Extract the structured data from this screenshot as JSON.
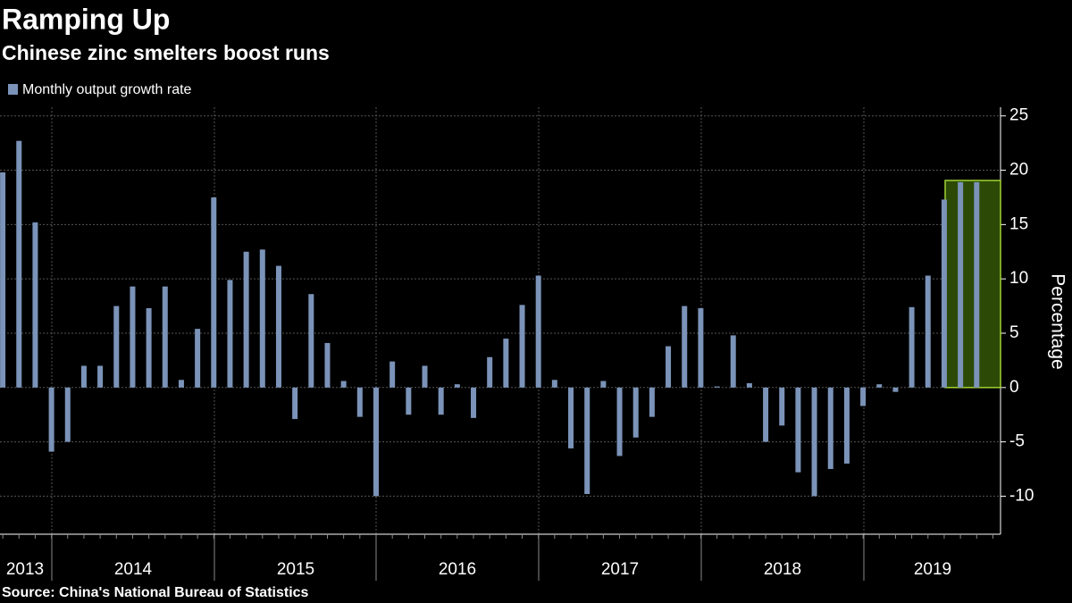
{
  "chart_data": {
    "type": "bar",
    "title": "Ramping Up",
    "subtitle": "Chinese zinc smelters boost runs",
    "source": "Source: China's National Bureau of Statistics",
    "y_label": "Percentage",
    "series": [
      {
        "name": "Monthly output growth rate",
        "color": "#7b93b8",
        "values": [
          19.8,
          22.7,
          15.2,
          -5.9,
          -5.0,
          2.0,
          2.0,
          7.5,
          9.3,
          7.3,
          9.3,
          0.7,
          5.4,
          17.5,
          9.9,
          12.5,
          12.7,
          11.2,
          -2.9,
          8.6,
          4.1,
          0.6,
          -2.7,
          -10.0,
          2.4,
          -2.5,
          2.0,
          -2.5,
          0.3,
          -2.8,
          2.8,
          4.5,
          7.6,
          10.3,
          0.7,
          -5.6,
          -9.8,
          0.6,
          -6.3,
          -4.6,
          -2.7,
          3.8,
          7.5,
          7.3,
          0.1,
          4.8,
          0.4,
          -5.0,
          -3.5,
          -7.8,
          -10.0,
          -7.5,
          -7.0,
          -1.7,
          0.3,
          -0.4,
          7.4,
          10.3,
          17.3,
          18.9,
          18.9
        ]
      }
    ],
    "x_labels": [
      "2013",
      "2014",
      "2015",
      "2016",
      "2017",
      "2018",
      "2019"
    ],
    "ylim": [
      -13.5,
      25.8
    ],
    "yticks": [
      -10,
      -5,
      0,
      5,
      10,
      15,
      20,
      25
    ],
    "grid": true
  }
}
